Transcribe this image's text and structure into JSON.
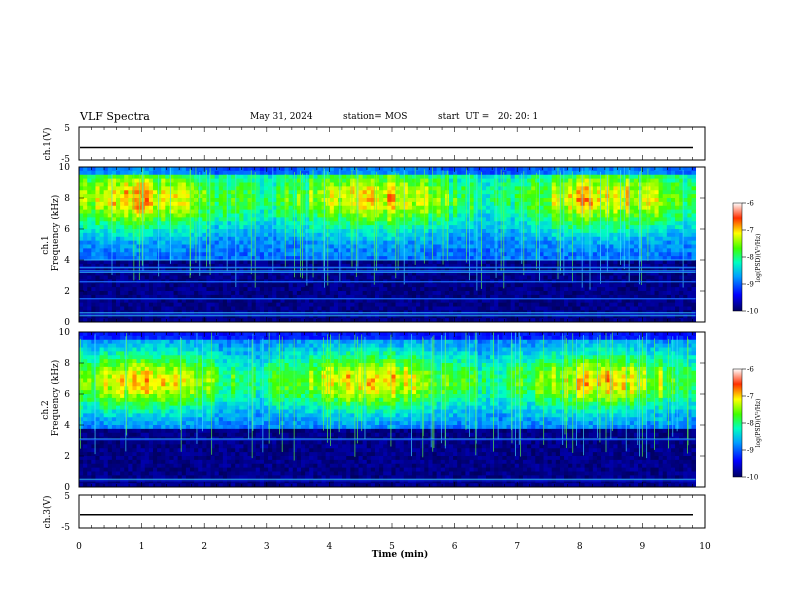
{
  "header": {
    "title": "VLF Spectra",
    "date": "May 31, 2024",
    "station": "station= MOS",
    "start": "start  UT =   20: 20: 1"
  },
  "chart_data": [
    {
      "type": "line",
      "name": "ch1-waveform",
      "ylabel": "ch.1(V)",
      "ylim": [
        -5,
        5
      ],
      "yticks": [
        5,
        -5
      ],
      "level": -1.2
    },
    {
      "type": "heatmap",
      "name": "ch1-spectrogram",
      "ylabel_top": "ch.1",
      "ylabel": "Frequency  (kHz)",
      "ylim": [
        0,
        10
      ],
      "yticks": [
        0,
        2,
        4,
        6,
        8,
        10
      ],
      "xlim": [
        0,
        9.85
      ],
      "colorbar": {
        "label": "log(PSD)(V²/Hz)",
        "range": [
          -10,
          -6
        ],
        "ticks": [
          -6,
          -7,
          -8,
          -9,
          -10
        ]
      },
      "bands_khz": [
        {
          "low": 0.3,
          "high": 0.7
        },
        {
          "low": 1.3,
          "high": 1.7
        },
        {
          "low": 2.4,
          "high": 2.8
        },
        {
          "low": 3.1,
          "high": 3.4
        },
        {
          "low": 3.5,
          "high": 3.6
        },
        {
          "low": 4.0,
          "high": 10.0
        }
      ],
      "lines_khz": [
        0.4,
        0.6,
        1.5,
        2.6,
        3.2,
        3.3,
        3.5,
        4.0
      ]
    },
    {
      "type": "heatmap",
      "name": "ch2-spectrogram",
      "ylabel_top": "ch.2",
      "ylabel": "Frequency  (kHz)",
      "ylim": [
        0,
        10
      ],
      "yticks": [
        0,
        2,
        4,
        6,
        8,
        10
      ],
      "xlim": [
        0,
        9.85
      ],
      "colorbar": {
        "label": "log(PSD)(V²/Hz)",
        "range": [
          -10,
          -6
        ],
        "ticks": [
          -6,
          -7,
          -8,
          -9,
          -10
        ]
      },
      "bands_khz": [
        {
          "low": 0.2,
          "high": 0.6
        },
        {
          "low": 2.9,
          "high": 3.2
        },
        {
          "low": 3.7,
          "high": 10.0
        }
      ],
      "lines_khz": [
        0.5,
        3.1
      ]
    },
    {
      "type": "line",
      "name": "ch3-waveform",
      "ylabel": "ch.3(V)",
      "ylim": [
        -5,
        5
      ],
      "yticks": [
        5,
        -5
      ],
      "level": -1.0,
      "xlabel": "Time  (min)",
      "xticks": [
        0,
        1,
        2,
        3,
        4,
        5,
        6,
        7,
        8,
        9,
        10
      ]
    }
  ]
}
